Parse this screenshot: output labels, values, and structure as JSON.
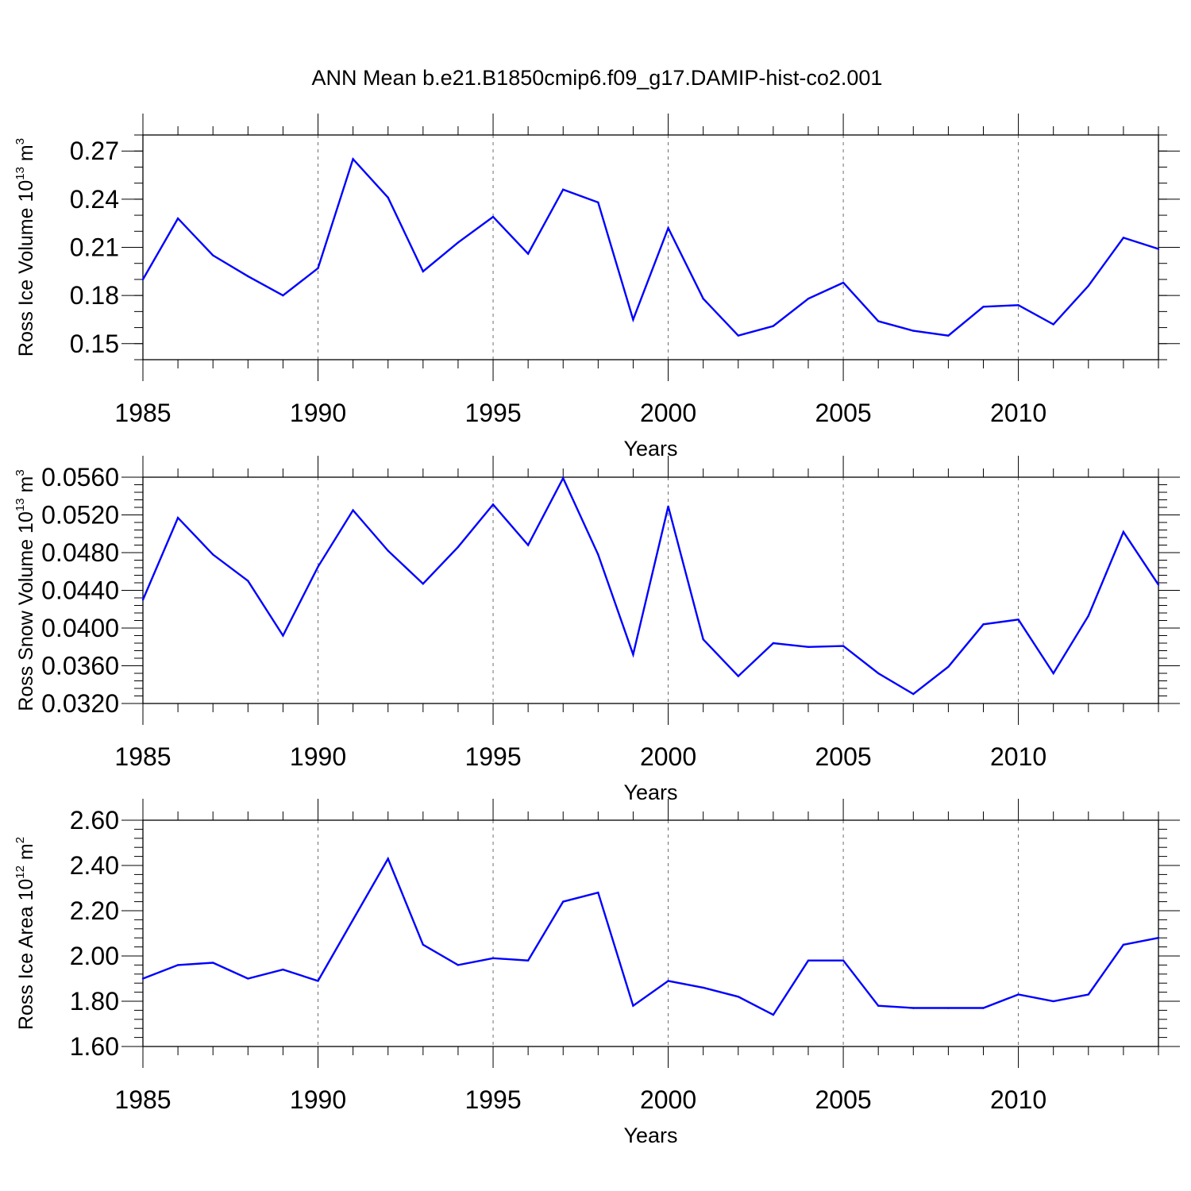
{
  "title": "ANN Mean b.e21.B1850cmip6.f09_g17.DAMIP-hist-co2.001",
  "colors": {
    "line": "#0000ff",
    "axis": "#000000"
  },
  "chart_data": [
    {
      "type": "line",
      "ylabel": "Ross Ice Volume 10",
      "ylabel_exp": "13",
      "ylabel_unit": " m",
      "ylabel_unit_exp": "3",
      "xlabel": "Years",
      "xlim": [
        1985,
        2014
      ],
      "ylim": [
        0.14,
        0.28
      ],
      "y_ticks": [
        0.15,
        0.18,
        0.21,
        0.24,
        0.27
      ],
      "y_tick_labels": [
        "0.15",
        "0.18",
        "0.21",
        "0.24",
        "0.27"
      ],
      "x_ticks": [
        1985,
        1990,
        1995,
        2000,
        2005,
        2010
      ],
      "x_tick_labels": [
        "1985",
        "1990",
        "1995",
        "2000",
        "2005",
        "2010"
      ],
      "x": [
        1985,
        1986,
        1987,
        1988,
        1989,
        1990,
        1991,
        1992,
        1993,
        1994,
        1995,
        1996,
        1997,
        1998,
        1999,
        2000,
        2001,
        2002,
        2003,
        2004,
        2005,
        2006,
        2007,
        2008,
        2009,
        2010,
        2011,
        2012,
        2013,
        2014
      ],
      "values": [
        0.19,
        0.228,
        0.205,
        0.192,
        0.18,
        0.197,
        0.265,
        0.241,
        0.195,
        0.213,
        0.229,
        0.206,
        0.246,
        0.238,
        0.165,
        0.222,
        0.178,
        0.155,
        0.161,
        0.178,
        0.188,
        0.164,
        0.158,
        0.155,
        0.173,
        0.174,
        0.162,
        0.186,
        0.216,
        0.209
      ]
    },
    {
      "type": "line",
      "ylabel": "Ross Snow Volume 10",
      "ylabel_exp": "13",
      "ylabel_unit": " m",
      "ylabel_unit_exp": "3",
      "xlabel": "Years",
      "xlim": [
        1985,
        2014
      ],
      "ylim": [
        0.032,
        0.056
      ],
      "y_ticks": [
        0.032,
        0.036,
        0.04,
        0.044,
        0.048,
        0.052,
        0.056
      ],
      "y_tick_labels": [
        "0.0320",
        "0.0360",
        "0.0400",
        "0.0440",
        "0.0480",
        "0.0520",
        "0.0560"
      ],
      "x_ticks": [
        1985,
        1990,
        1995,
        2000,
        2005,
        2010
      ],
      "x_tick_labels": [
        "1985",
        "1990",
        "1995",
        "2000",
        "2005",
        "2010"
      ],
      "x": [
        1985,
        1986,
        1987,
        1988,
        1989,
        1990,
        1991,
        1992,
        1993,
        1994,
        1995,
        1996,
        1997,
        1998,
        1999,
        2000,
        2001,
        2002,
        2003,
        2004,
        2005,
        2006,
        2007,
        2008,
        2009,
        2010,
        2011,
        2012,
        2013,
        2014
      ],
      "values": [
        0.043,
        0.0517,
        0.0478,
        0.045,
        0.0392,
        0.0465,
        0.0525,
        0.0482,
        0.0447,
        0.0486,
        0.0531,
        0.0488,
        0.0559,
        0.0478,
        0.0372,
        0.0529,
        0.0388,
        0.0349,
        0.0384,
        0.038,
        0.0381,
        0.0352,
        0.033,
        0.0359,
        0.0404,
        0.0409,
        0.0352,
        0.0413,
        0.0502,
        0.0446
      ]
    },
    {
      "type": "line",
      "ylabel": "Ross Ice Area 10",
      "ylabel_exp": "12",
      "ylabel_unit": " m",
      "ylabel_unit_exp": "2",
      "xlabel": "Years",
      "xlim": [
        1985,
        2014
      ],
      "ylim": [
        1.6,
        2.6
      ],
      "y_ticks": [
        1.6,
        1.8,
        2.0,
        2.2,
        2.4,
        2.6
      ],
      "y_tick_labels": [
        "1.60",
        "1.80",
        "2.00",
        "2.20",
        "2.40",
        "2.60"
      ],
      "x_ticks": [
        1985,
        1990,
        1995,
        2000,
        2005,
        2010
      ],
      "x_tick_labels": [
        "1985",
        "1990",
        "1995",
        "2000",
        "2005",
        "2010"
      ],
      "x": [
        1985,
        1986,
        1987,
        1988,
        1989,
        1990,
        1991,
        1992,
        1993,
        1994,
        1995,
        1996,
        1997,
        1998,
        1999,
        2000,
        2001,
        2002,
        2003,
        2004,
        2005,
        2006,
        2007,
        2008,
        2009,
        2010,
        2011,
        2012,
        2013,
        2014
      ],
      "values": [
        1.9,
        1.96,
        1.97,
        1.9,
        1.94,
        1.89,
        2.16,
        2.43,
        2.05,
        1.96,
        1.99,
        1.98,
        2.24,
        2.28,
        1.78,
        1.89,
        1.86,
        1.82,
        1.74,
        1.98,
        1.98,
        1.78,
        1.77,
        1.77,
        1.77,
        1.83,
        1.8,
        1.83,
        2.05,
        2.08
      ]
    }
  ]
}
